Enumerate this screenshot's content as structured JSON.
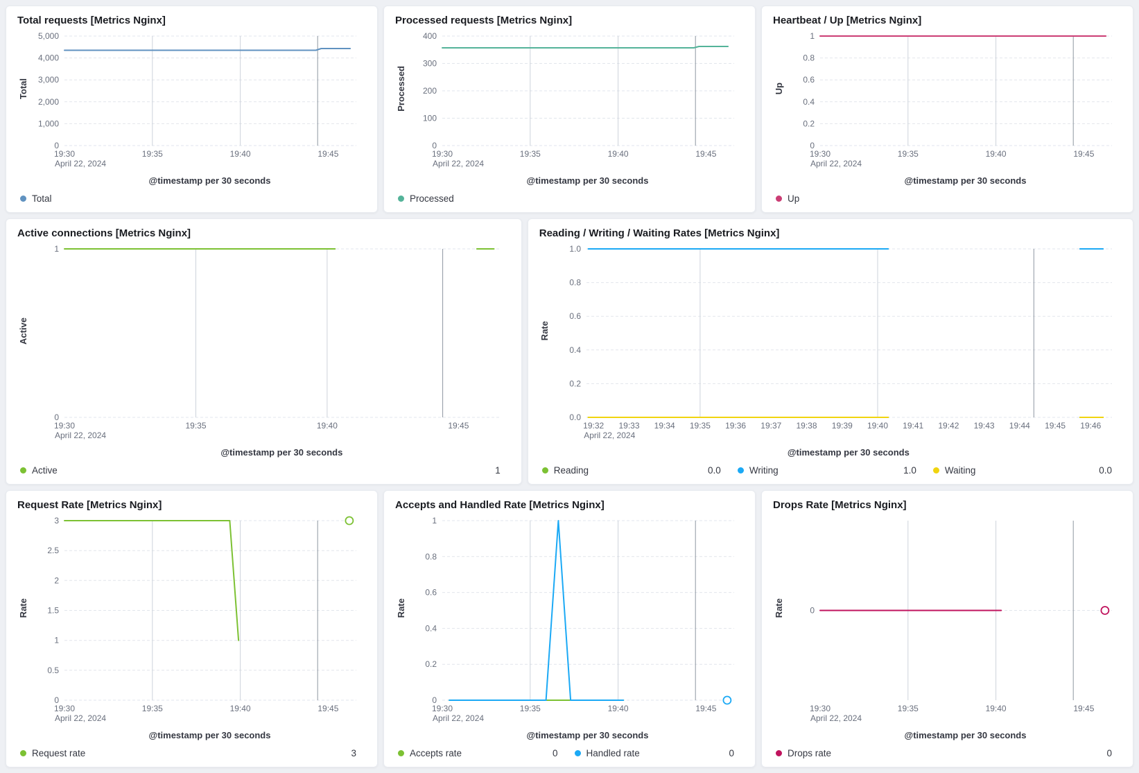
{
  "page": {
    "background": "#EEF0F4",
    "panel_background": "#FFFFFF"
  },
  "chart_data": [
    {
      "type": "line",
      "title": "Total requests [Metrics Nginx]",
      "ylabel": "Total",
      "xlabel": "@timestamp per 30 seconds",
      "ylim": [
        0,
        5000
      ],
      "yticks": [
        {
          "v": 0,
          "label": "0"
        },
        {
          "v": 1000,
          "label": "1,000"
        },
        {
          "v": 2000,
          "label": "2,000"
        },
        {
          "v": 3000,
          "label": "3,000"
        },
        {
          "v": 4000,
          "label": "4,000"
        },
        {
          "v": 5000,
          "label": "5,000"
        }
      ],
      "xlim": [
        0,
        16.6
      ],
      "x_unit": "minutes after 19:30 on April 22, 2024",
      "xticks": [
        {
          "v": 0,
          "label": "19:30",
          "sub": "April 22, 2024"
        },
        {
          "v": 5,
          "label": "19:35"
        },
        {
          "v": 10,
          "label": "19:40"
        },
        {
          "v": 15,
          "label": "19:45"
        }
      ],
      "vgrid": [
        5,
        10
      ],
      "vmark": 14.4,
      "series": [
        {
          "name": "Total",
          "color": "#6092C0",
          "legend_value": "",
          "segments": [
            [
              [
                0,
                4350
              ],
              [
                14.3,
                4350
              ],
              [
                14.6,
                4430
              ],
              [
                16.25,
                4430
              ]
            ]
          ],
          "markers": []
        }
      ]
    },
    {
      "type": "line",
      "title": "Processed requests [Metrics Nginx]",
      "ylabel": "Processed",
      "xlabel": "@timestamp per 30 seconds",
      "ylim": [
        0,
        400
      ],
      "yticks": [
        {
          "v": 0,
          "label": "0"
        },
        {
          "v": 100,
          "label": "100"
        },
        {
          "v": 200,
          "label": "200"
        },
        {
          "v": 300,
          "label": "300"
        },
        {
          "v": 400,
          "label": "400"
        }
      ],
      "xlim": [
        0,
        16.6
      ],
      "x_unit": "minutes after 19:30 on April 22, 2024",
      "xticks": [
        {
          "v": 0,
          "label": "19:30",
          "sub": "April 22, 2024"
        },
        {
          "v": 5,
          "label": "19:35"
        },
        {
          "v": 10,
          "label": "19:40"
        },
        {
          "v": 15,
          "label": "19:45"
        }
      ],
      "vgrid": [
        5,
        10
      ],
      "vmark": 14.4,
      "series": [
        {
          "name": "Processed",
          "color": "#54B399",
          "legend_value": "",
          "segments": [
            [
              [
                0,
                357
              ],
              [
                14.3,
                357
              ],
              [
                14.6,
                362
              ],
              [
                16.25,
                362
              ]
            ]
          ],
          "markers": []
        }
      ]
    },
    {
      "type": "line",
      "title": "Heartbeat / Up [Metrics Nginx]",
      "ylabel": "Up",
      "xlabel": "@timestamp per 30 seconds",
      "ylim": [
        0,
        1
      ],
      "yticks": [
        {
          "v": 0,
          "label": "0"
        },
        {
          "v": 0.2,
          "label": "0.2"
        },
        {
          "v": 0.4,
          "label": "0.4"
        },
        {
          "v": 0.6,
          "label": "0.6"
        },
        {
          "v": 0.8,
          "label": "0.8"
        },
        {
          "v": 1,
          "label": "1"
        }
      ],
      "xlim": [
        0,
        16.6
      ],
      "x_unit": "minutes after 19:30 on April 22, 2024",
      "xticks": [
        {
          "v": 0,
          "label": "19:30",
          "sub": "April 22, 2024"
        },
        {
          "v": 5,
          "label": "19:35"
        },
        {
          "v": 10,
          "label": "19:40"
        },
        {
          "v": 15,
          "label": "19:45"
        }
      ],
      "vgrid": [
        5,
        10
      ],
      "vmark": 14.4,
      "series": [
        {
          "name": "Up",
          "color": "#CB3D74",
          "legend_value": "",
          "segments": [
            [
              [
                0,
                1
              ],
              [
                16.25,
                1
              ]
            ]
          ],
          "markers": []
        }
      ]
    },
    {
      "type": "line",
      "title": "Active connections [Metrics Nginx]",
      "ylabel": "Active",
      "xlabel": "@timestamp per 30 seconds",
      "ylim": [
        0,
        1
      ],
      "yticks": [
        {
          "v": 0,
          "label": "0"
        },
        {
          "v": 1,
          "label": "1"
        }
      ],
      "xlim": [
        0,
        16.6
      ],
      "x_unit": "minutes after 19:30 on April 22, 2024",
      "xticks": [
        {
          "v": 0,
          "label": "19:30",
          "sub": "April 22, 2024"
        },
        {
          "v": 5,
          "label": "19:35"
        },
        {
          "v": 10,
          "label": "19:40"
        },
        {
          "v": 15,
          "label": "19:45"
        }
      ],
      "vgrid": [
        5,
        10
      ],
      "vmark": 14.4,
      "series": [
        {
          "name": "Active",
          "color": "#7CC133",
          "legend_value": "1",
          "segments": [
            [
              [
                0,
                1
              ],
              [
                10.3,
                1
              ]
            ],
            [
              [
                15.7,
                1
              ],
              [
                16.35,
                1
              ]
            ]
          ],
          "markers": []
        }
      ]
    },
    {
      "type": "line",
      "title": "Reading / Writing / Waiting Rates [Metrics Nginx]",
      "ylabel": "Rate",
      "xlabel": "@timestamp per 30 seconds",
      "ylim": [
        0,
        1
      ],
      "yticks": [
        {
          "v": 0,
          "label": "0.0"
        },
        {
          "v": 0.2,
          "label": "0.2"
        },
        {
          "v": 0.4,
          "label": "0.4"
        },
        {
          "v": 0.6,
          "label": "0.6"
        },
        {
          "v": 0.8,
          "label": "0.8"
        },
        {
          "v": 1,
          "label": "1.0"
        }
      ],
      "xlim": [
        1.8,
        16.6
      ],
      "x_unit": "minutes after 19:30 on April 22, 2024",
      "xticks": [
        {
          "v": 2,
          "label": "19:32",
          "sub": "April 22, 2024"
        },
        {
          "v": 3,
          "label": "19:33"
        },
        {
          "v": 4,
          "label": "19:34"
        },
        {
          "v": 5,
          "label": "19:35"
        },
        {
          "v": 6,
          "label": "19:36"
        },
        {
          "v": 7,
          "label": "19:37"
        },
        {
          "v": 8,
          "label": "19:38"
        },
        {
          "v": 9,
          "label": "19:39"
        },
        {
          "v": 10,
          "label": "19:40"
        },
        {
          "v": 11,
          "label": "19:41"
        },
        {
          "v": 12,
          "label": "19:42"
        },
        {
          "v": 13,
          "label": "19:43"
        },
        {
          "v": 14,
          "label": "19:44"
        },
        {
          "v": 15,
          "label": "19:45"
        },
        {
          "v": 16,
          "label": "19:46"
        }
      ],
      "vgrid": [
        5,
        10
      ],
      "vmark": 14.4,
      "series": [
        {
          "name": "Reading",
          "color": "#7CC133",
          "legend_value": "0.0",
          "segments": [
            [
              [
                1.85,
                0
              ],
              [
                10.3,
                0
              ]
            ],
            [
              [
                15.7,
                0
              ],
              [
                16.35,
                0
              ]
            ]
          ],
          "markers": []
        },
        {
          "name": "Writing",
          "color": "#1BA9F5",
          "legend_value": "1.0",
          "segments": [
            [
              [
                1.85,
                1
              ],
              [
                10.3,
                1
              ]
            ],
            [
              [
                15.7,
                1
              ],
              [
                16.35,
                1
              ]
            ]
          ],
          "markers": []
        },
        {
          "name": "Waiting",
          "color": "#F0D40F",
          "legend_value": "0.0",
          "segments": [
            [
              [
                1.85,
                0
              ],
              [
                10.3,
                0
              ]
            ],
            [
              [
                15.7,
                0
              ],
              [
                16.35,
                0
              ]
            ]
          ],
          "markers": []
        }
      ]
    },
    {
      "type": "line",
      "title": "Request Rate [Metrics Nginx]",
      "ylabel": "Rate",
      "xlabel": "@timestamp per 30 seconds",
      "ylim": [
        0,
        3
      ],
      "yticks": [
        {
          "v": 0,
          "label": "0"
        },
        {
          "v": 0.5,
          "label": "0.5"
        },
        {
          "v": 1,
          "label": "1"
        },
        {
          "v": 1.5,
          "label": "1.5"
        },
        {
          "v": 2,
          "label": "2"
        },
        {
          "v": 2.5,
          "label": "2.5"
        },
        {
          "v": 3,
          "label": "3"
        }
      ],
      "xlim": [
        0,
        16.6
      ],
      "x_unit": "minutes after 19:30 on April 22, 2024",
      "xticks": [
        {
          "v": 0,
          "label": "19:30",
          "sub": "April 22, 2024"
        },
        {
          "v": 5,
          "label": "19:35"
        },
        {
          "v": 10,
          "label": "19:40"
        },
        {
          "v": 15,
          "label": "19:45"
        }
      ],
      "vgrid": [
        5,
        10
      ],
      "vmark": 14.4,
      "series": [
        {
          "name": "Request rate",
          "color": "#7CC133",
          "legend_value": "3",
          "segments": [
            [
              [
                0,
                3
              ],
              [
                9.4,
                3
              ],
              [
                9.9,
                1
              ]
            ]
          ],
          "markers": [
            [
              16.2,
              3
            ]
          ]
        }
      ]
    },
    {
      "type": "line",
      "title": "Accepts and Handled Rate [Metrics Nginx]",
      "ylabel": "Rate",
      "xlabel": "@timestamp per 30 seconds",
      "ylim": [
        0,
        1
      ],
      "yticks": [
        {
          "v": 0,
          "label": "0"
        },
        {
          "v": 0.2,
          "label": "0.2"
        },
        {
          "v": 0.4,
          "label": "0.4"
        },
        {
          "v": 0.6,
          "label": "0.6"
        },
        {
          "v": 0.8,
          "label": "0.8"
        },
        {
          "v": 1,
          "label": "1"
        }
      ],
      "xlim": [
        0,
        16.6
      ],
      "x_unit": "minutes after 19:30 on April 22, 2024",
      "xticks": [
        {
          "v": 0,
          "label": "19:30",
          "sub": "April 22, 2024"
        },
        {
          "v": 5,
          "label": "19:35"
        },
        {
          "v": 10,
          "label": "19:40"
        },
        {
          "v": 15,
          "label": "19:45"
        }
      ],
      "vgrid": [
        5,
        10
      ],
      "vmark": 14.4,
      "series": [
        {
          "name": "Accepts rate",
          "color": "#7CC133",
          "legend_value": "0",
          "segments": [
            [
              [
                0.4,
                0
              ],
              [
                10.3,
                0
              ]
            ]
          ],
          "markers": []
        },
        {
          "name": "Handled rate",
          "color": "#1BA9F5",
          "legend_value": "0",
          "segments": [
            [
              [
                0.4,
                0
              ],
              [
                5.9,
                0
              ],
              [
                6.6,
                1
              ],
              [
                7.3,
                0
              ],
              [
                10.3,
                0
              ]
            ]
          ],
          "markers": [
            [
              16.2,
              0
            ]
          ]
        }
      ]
    },
    {
      "type": "line",
      "title": "Drops Rate [Metrics Nginx]",
      "ylabel": "Rate",
      "xlabel": "@timestamp per 30 seconds",
      "ylim": [
        -1,
        1
      ],
      "yticks": [
        {
          "v": 0,
          "label": "0"
        }
      ],
      "xlim": [
        0,
        16.6
      ],
      "x_unit": "minutes after 19:30 on April 22, 2024",
      "xticks": [
        {
          "v": 0,
          "label": "19:30",
          "sub": "April 22, 2024"
        },
        {
          "v": 5,
          "label": "19:35"
        },
        {
          "v": 10,
          "label": "19:40"
        },
        {
          "v": 15,
          "label": "19:45"
        }
      ],
      "vgrid": [
        5,
        10
      ],
      "vmark": 14.4,
      "series": [
        {
          "name": "Drops rate",
          "color": "#C0135D",
          "legend_value": "0",
          "segments": [
            [
              [
                0,
                0
              ],
              [
                10.3,
                0
              ]
            ]
          ],
          "markers": [
            [
              16.2,
              0
            ]
          ]
        }
      ]
    }
  ],
  "chart_style": {
    "hgrid_color": "#E2E6EC",
    "vgrid_color": "#CDD3DB",
    "vmark_color": "#8E96A1",
    "tick_text_color": "#696F7D",
    "line_width": 2
  }
}
